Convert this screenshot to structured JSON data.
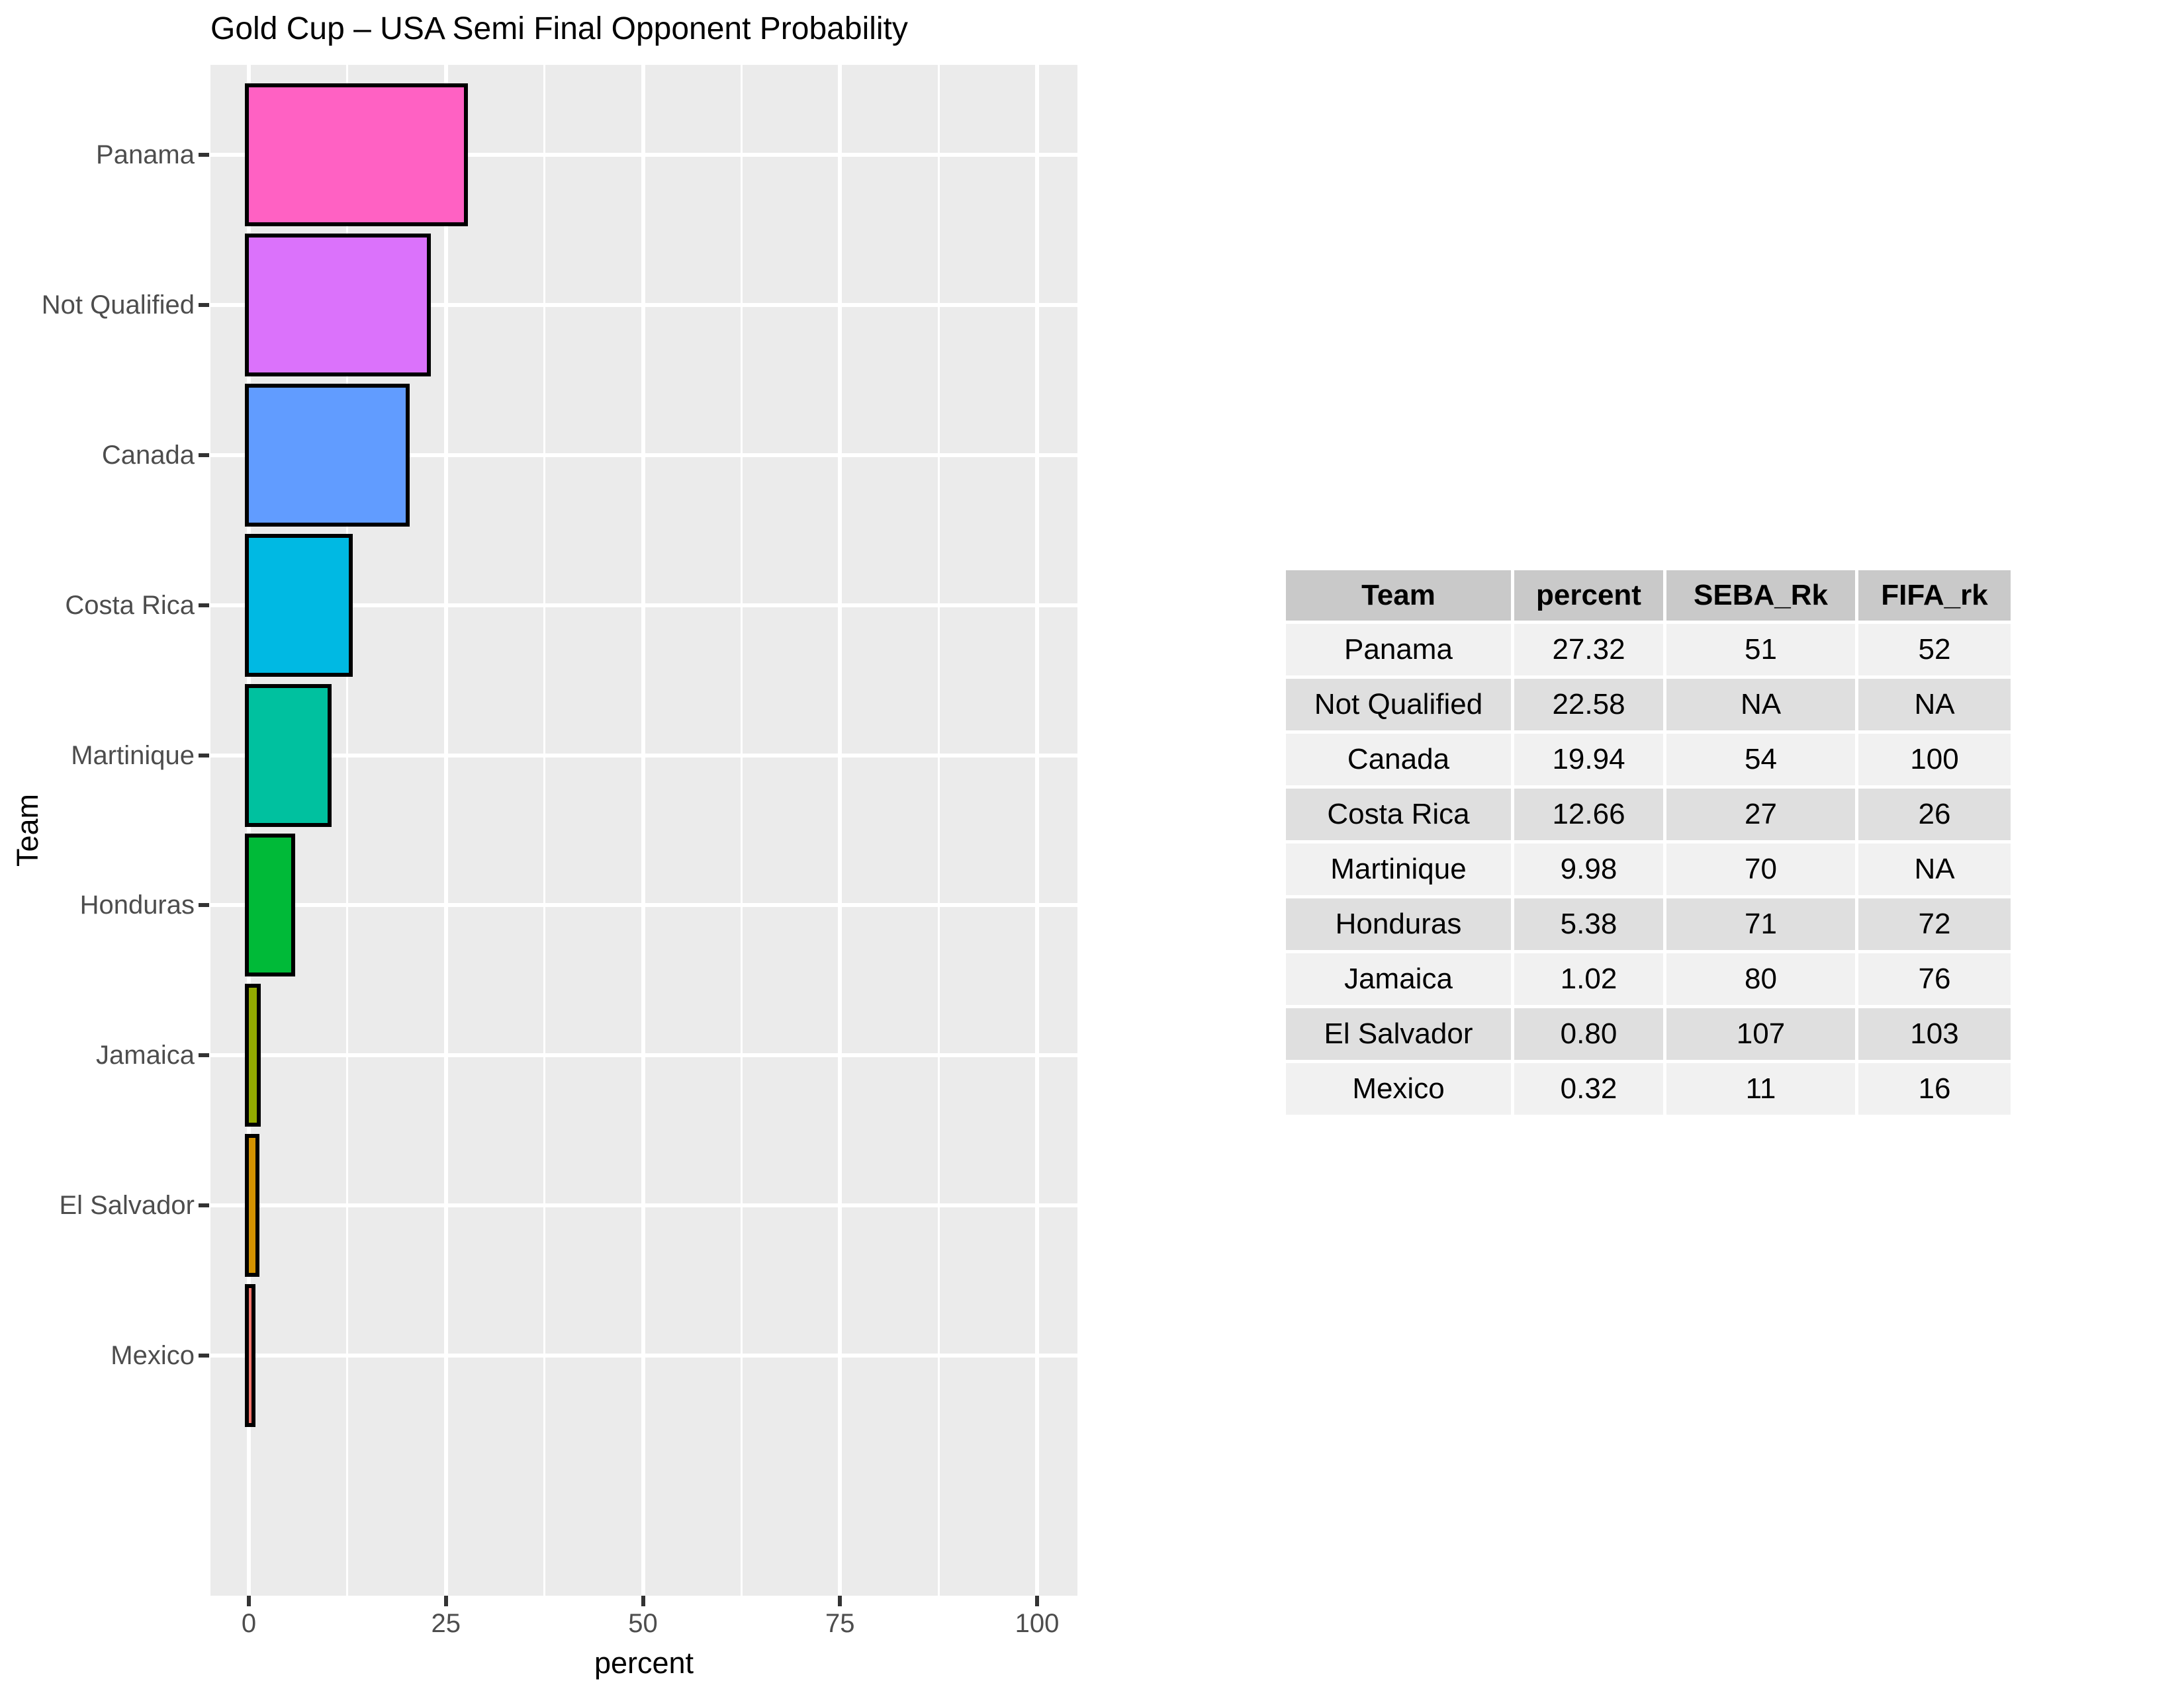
{
  "title": "Gold Cup – USA Semi Final Opponent Probability",
  "chart_data": {
    "type": "bar",
    "orientation": "horizontal",
    "title": "Gold Cup – USA Semi Final Opponent Probability",
    "categories": [
      "Panama",
      "Not Qualified",
      "Canada",
      "Costa Rica",
      "Martinique",
      "Honduras",
      "Jamaica",
      "El Salvador",
      "Mexico"
    ],
    "values": [
      27.32,
      22.58,
      19.94,
      12.66,
      9.98,
      5.38,
      1.02,
      0.8,
      0.32
    ],
    "bar_colors": [
      "#FF61C3",
      "#DB72FB",
      "#619CFF",
      "#00B9E3",
      "#00C19F",
      "#00BA38",
      "#93AA00",
      "#D39200",
      "#F8766D"
    ],
    "bar_outline_color": "#000000",
    "xlabel": "percent",
    "ylabel": "Team",
    "xlim": [
      -5,
      105
    ],
    "x_major_ticks": [
      0,
      25,
      50,
      75,
      100
    ],
    "x_minor_ticks": [
      12.5,
      37.5,
      62.5,
      87.5
    ],
    "grid": "on",
    "panel_bg_color": "#EBEBEB",
    "grid_color": "#FFFFFF",
    "axis_text_color": "#4D4D4D",
    "tick_mark_color": "#333333"
  },
  "table": {
    "headers": [
      "Team",
      "percent",
      "SEBA_Rk",
      "FIFA_rk"
    ],
    "rows": [
      [
        "Panama",
        "27.32",
        "51",
        "52"
      ],
      [
        "Not Qualified",
        "22.58",
        "NA",
        "NA"
      ],
      [
        "Canada",
        "19.94",
        "54",
        "100"
      ],
      [
        "Costa Rica",
        "12.66",
        "27",
        "26"
      ],
      [
        "Martinique",
        "9.98",
        "70",
        "NA"
      ],
      [
        "Honduras",
        "5.38",
        "71",
        "72"
      ],
      [
        "Jamaica",
        "1.02",
        "80",
        "76"
      ],
      [
        "El Salvador",
        "0.80",
        "107",
        "103"
      ],
      [
        "Mexico",
        "0.32",
        "11",
        "16"
      ]
    ],
    "header_bg_color": "#C9C9C9",
    "row_bg_light": "#F1F1F1",
    "row_bg_dark": "#DFDFDF"
  }
}
